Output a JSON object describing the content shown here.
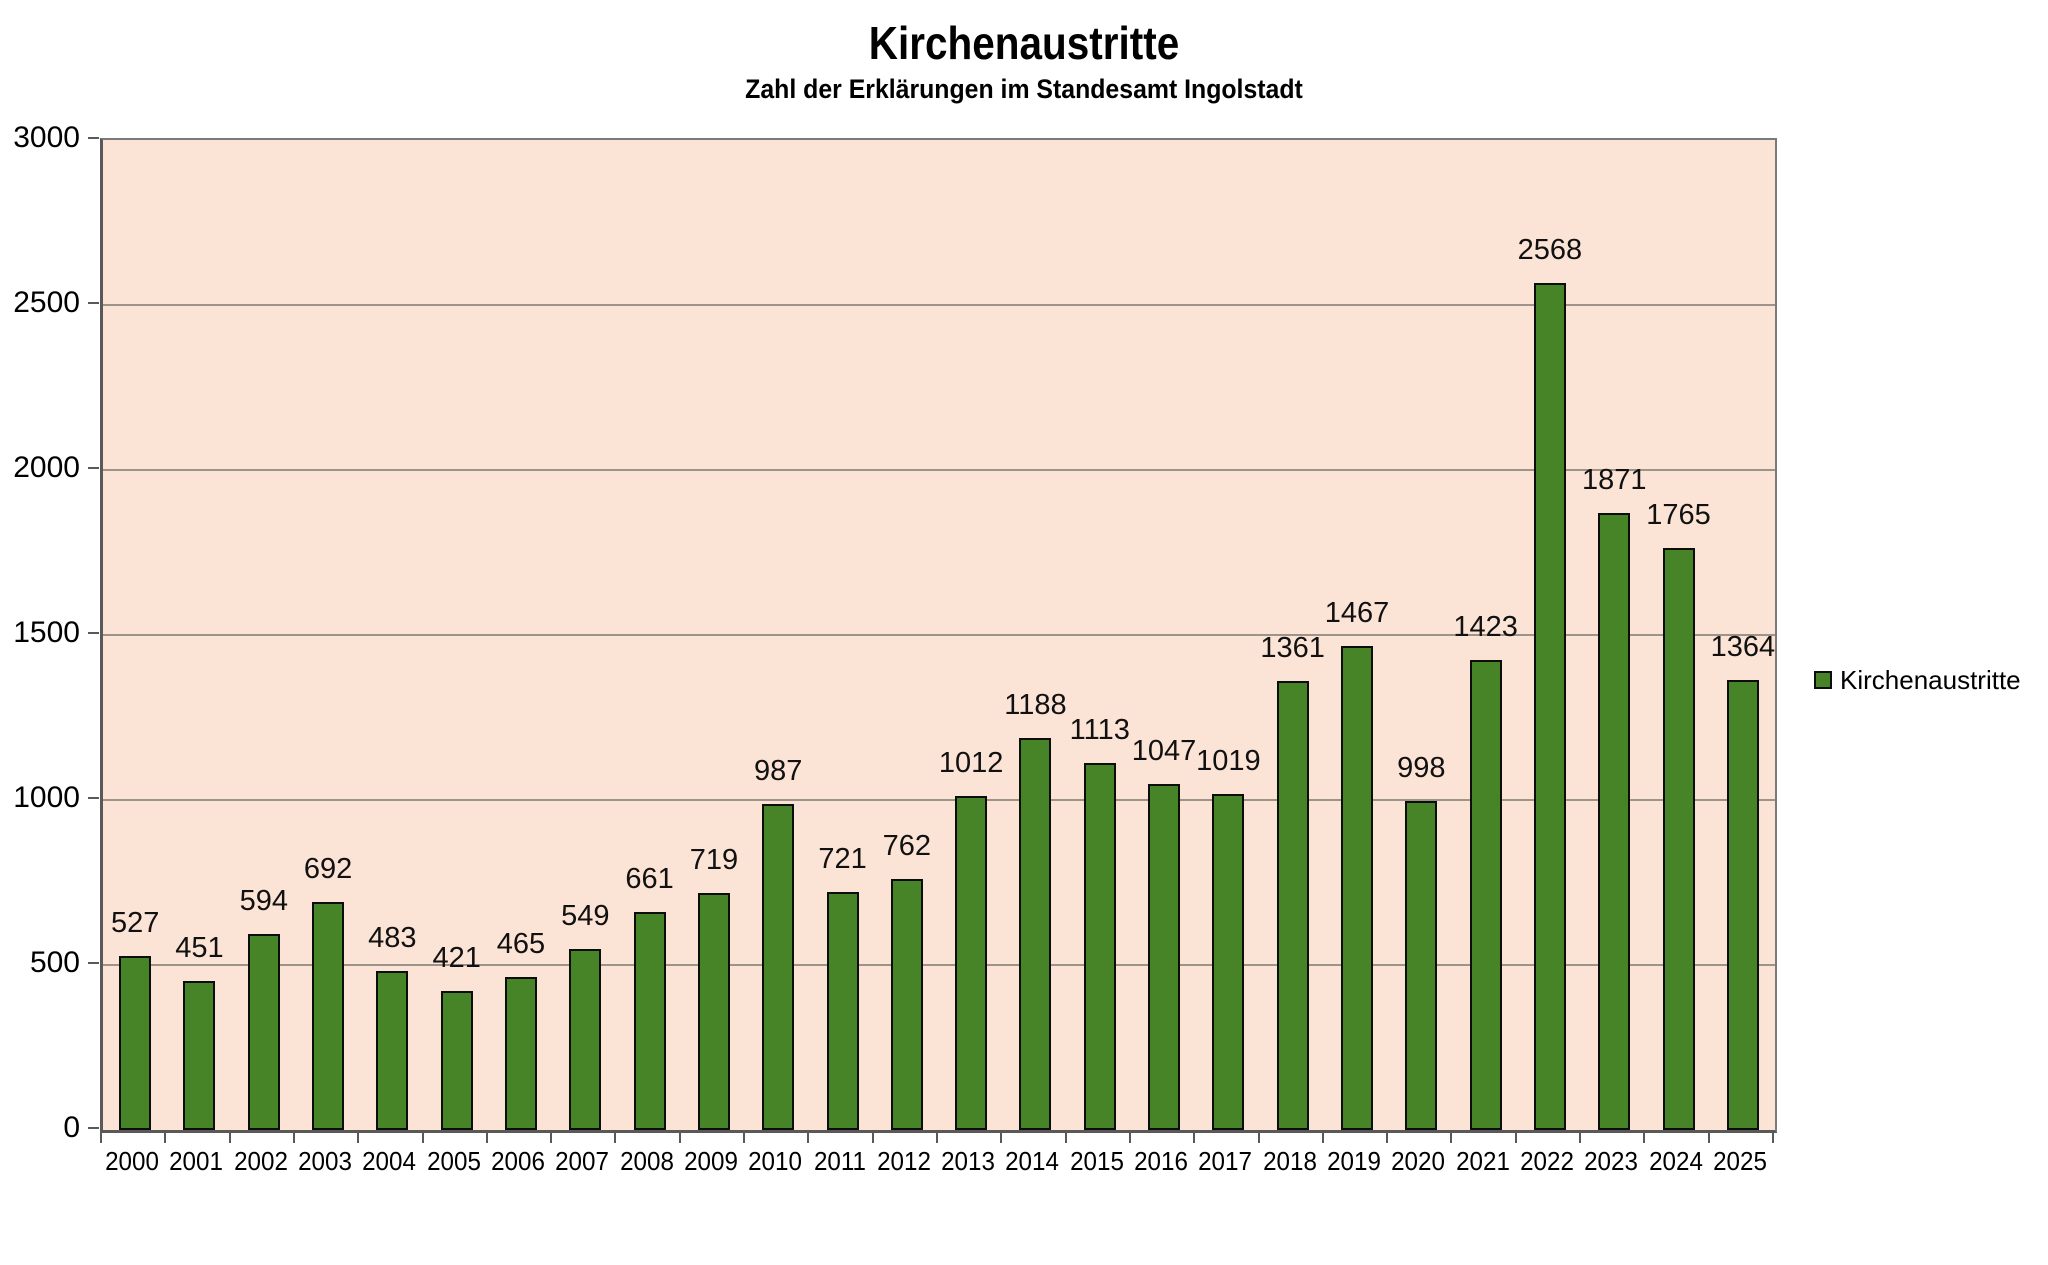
{
  "chart_data": {
    "type": "bar",
    "title": "Kirchenaustritte",
    "subtitle": "Zahl der Erklärungen im Standesamt Ingolstadt",
    "series_name": "Kirchenaustritte",
    "categories": [
      "2000",
      "2001",
      "2002",
      "2003",
      "2004",
      "2005",
      "2006",
      "2007",
      "2008",
      "2009",
      "2010",
      "2011",
      "2012",
      "2013",
      "2014",
      "2015",
      "2016",
      "2017",
      "2018",
      "2019",
      "2020",
      "2021",
      "2022",
      "2023",
      "2024",
      "2025"
    ],
    "values": [
      527,
      451,
      594,
      692,
      483,
      421,
      465,
      549,
      661,
      719,
      987,
      721,
      762,
      1012,
      1188,
      1113,
      1047,
      1019,
      1361,
      1467,
      998,
      1423,
      2568,
      1871,
      1765,
      1364
    ],
    "ylim": [
      0,
      3000
    ],
    "ytick_step": 500,
    "grid": true,
    "legend_position": "right",
    "data_labels": true,
    "colors": {
      "bar_fill": "#478427",
      "bar_border": "#0d0d0d",
      "plot_background": "#fbe3d5",
      "gridline": "#9e9388",
      "axis": "#595959",
      "text": "#000000"
    }
  }
}
